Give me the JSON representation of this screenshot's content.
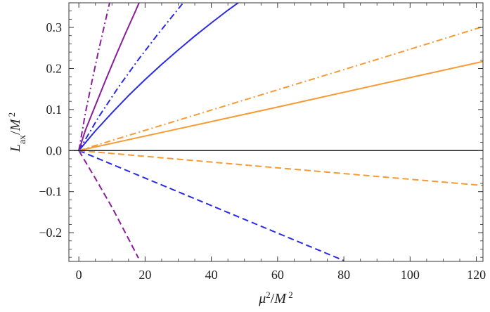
{
  "chart_data": {
    "type": "line",
    "title": "",
    "xlabel": {
      "parts": [
        {
          "text": "μ",
          "style": "italic"
        },
        {
          "text": "2",
          "style": "sup"
        },
        {
          "text": "/",
          "style": "normal"
        },
        {
          "text": "M",
          "style": "italic"
        },
        {
          "text": " 2",
          "style": "sup"
        }
      ]
    },
    "ylabel": {
      "parts": [
        {
          "text": "L",
          "style": "italic"
        },
        {
          "text": "ax",
          "style": "sub"
        },
        {
          "text": "/",
          "style": "normal"
        },
        {
          "text": "M",
          "style": "italic"
        },
        {
          "text": " 2",
          "style": "sup"
        }
      ]
    },
    "xlim": [
      -3,
      122
    ],
    "ylim": [
      -0.27,
      0.36
    ],
    "xticks": [
      0,
      20,
      40,
      60,
      80,
      100,
      120
    ],
    "xtick_labels": [
      "0",
      "20",
      "40",
      "60",
      "80",
      "100",
      "120"
    ],
    "yticks": [
      -0.2,
      -0.1,
      0.0,
      0.1,
      0.2,
      0.3
    ],
    "ytick_labels": [
      "−0.2",
      "−0.1",
      "0.0",
      "0.1",
      "0.2",
      "0.3"
    ],
    "grid": false,
    "legend": "none",
    "zero_line": {
      "y": 0,
      "color": "#000000"
    },
    "series": [
      {
        "color": "#8a1c9a",
        "dash": "dashdot",
        "x": [
          0,
          2,
          4,
          6,
          8,
          10
        ],
        "y": [
          0,
          0.092,
          0.17,
          0.245,
          0.315,
          0.385
        ]
      },
      {
        "color": "#8a1c9a",
        "dash": "solid",
        "x": [
          0,
          2,
          5,
          8,
          11,
          14,
          17,
          19
        ],
        "y": [
          0,
          0.05,
          0.11,
          0.17,
          0.228,
          0.284,
          0.338,
          0.375
        ]
      },
      {
        "color": "#8a1c9a",
        "dash": "dashed",
        "x": [
          0,
          5,
          10,
          15,
          18
        ],
        "y": [
          0,
          -0.068,
          -0.138,
          -0.215,
          -0.262
        ]
      },
      {
        "color": "#2a2ae6",
        "dash": "dashdot",
        "x": [
          0,
          6,
          12,
          18,
          24,
          30,
          36
        ],
        "y": [
          0,
          0.082,
          0.155,
          0.222,
          0.285,
          0.345,
          0.405
        ]
      },
      {
        "color": "#2a2ae6",
        "dash": "solid",
        "x": [
          0,
          5,
          10,
          15,
          20,
          25,
          30,
          35,
          40,
          45,
          50,
          55
        ],
        "y": [
          0,
          0.048,
          0.092,
          0.134,
          0.173,
          0.21,
          0.245,
          0.279,
          0.311,
          0.342,
          0.371,
          0.4
        ]
      },
      {
        "color": "#2a2ae6",
        "dash": "dashed",
        "x": [
          0,
          20,
          40,
          60,
          80
        ],
        "y": [
          0,
          -0.067,
          -0.134,
          -0.201,
          -0.268
        ]
      },
      {
        "color": "#f79a33",
        "dash": "dashdot",
        "x": [
          0,
          30,
          60,
          90,
          122
        ],
        "y": [
          0,
          0.074,
          0.148,
          0.222,
          0.302
        ]
      },
      {
        "color": "#f79a33",
        "dash": "solid",
        "x": [
          0,
          30,
          60,
          90,
          122
        ],
        "y": [
          0,
          0.053,
          0.106,
          0.16,
          0.217
        ]
      },
      {
        "color": "#f79a33",
        "dash": "dashed",
        "x": [
          0,
          30,
          60,
          90,
          122
        ],
        "y": [
          0,
          -0.021,
          -0.042,
          -0.063,
          -0.085
        ]
      }
    ]
  }
}
